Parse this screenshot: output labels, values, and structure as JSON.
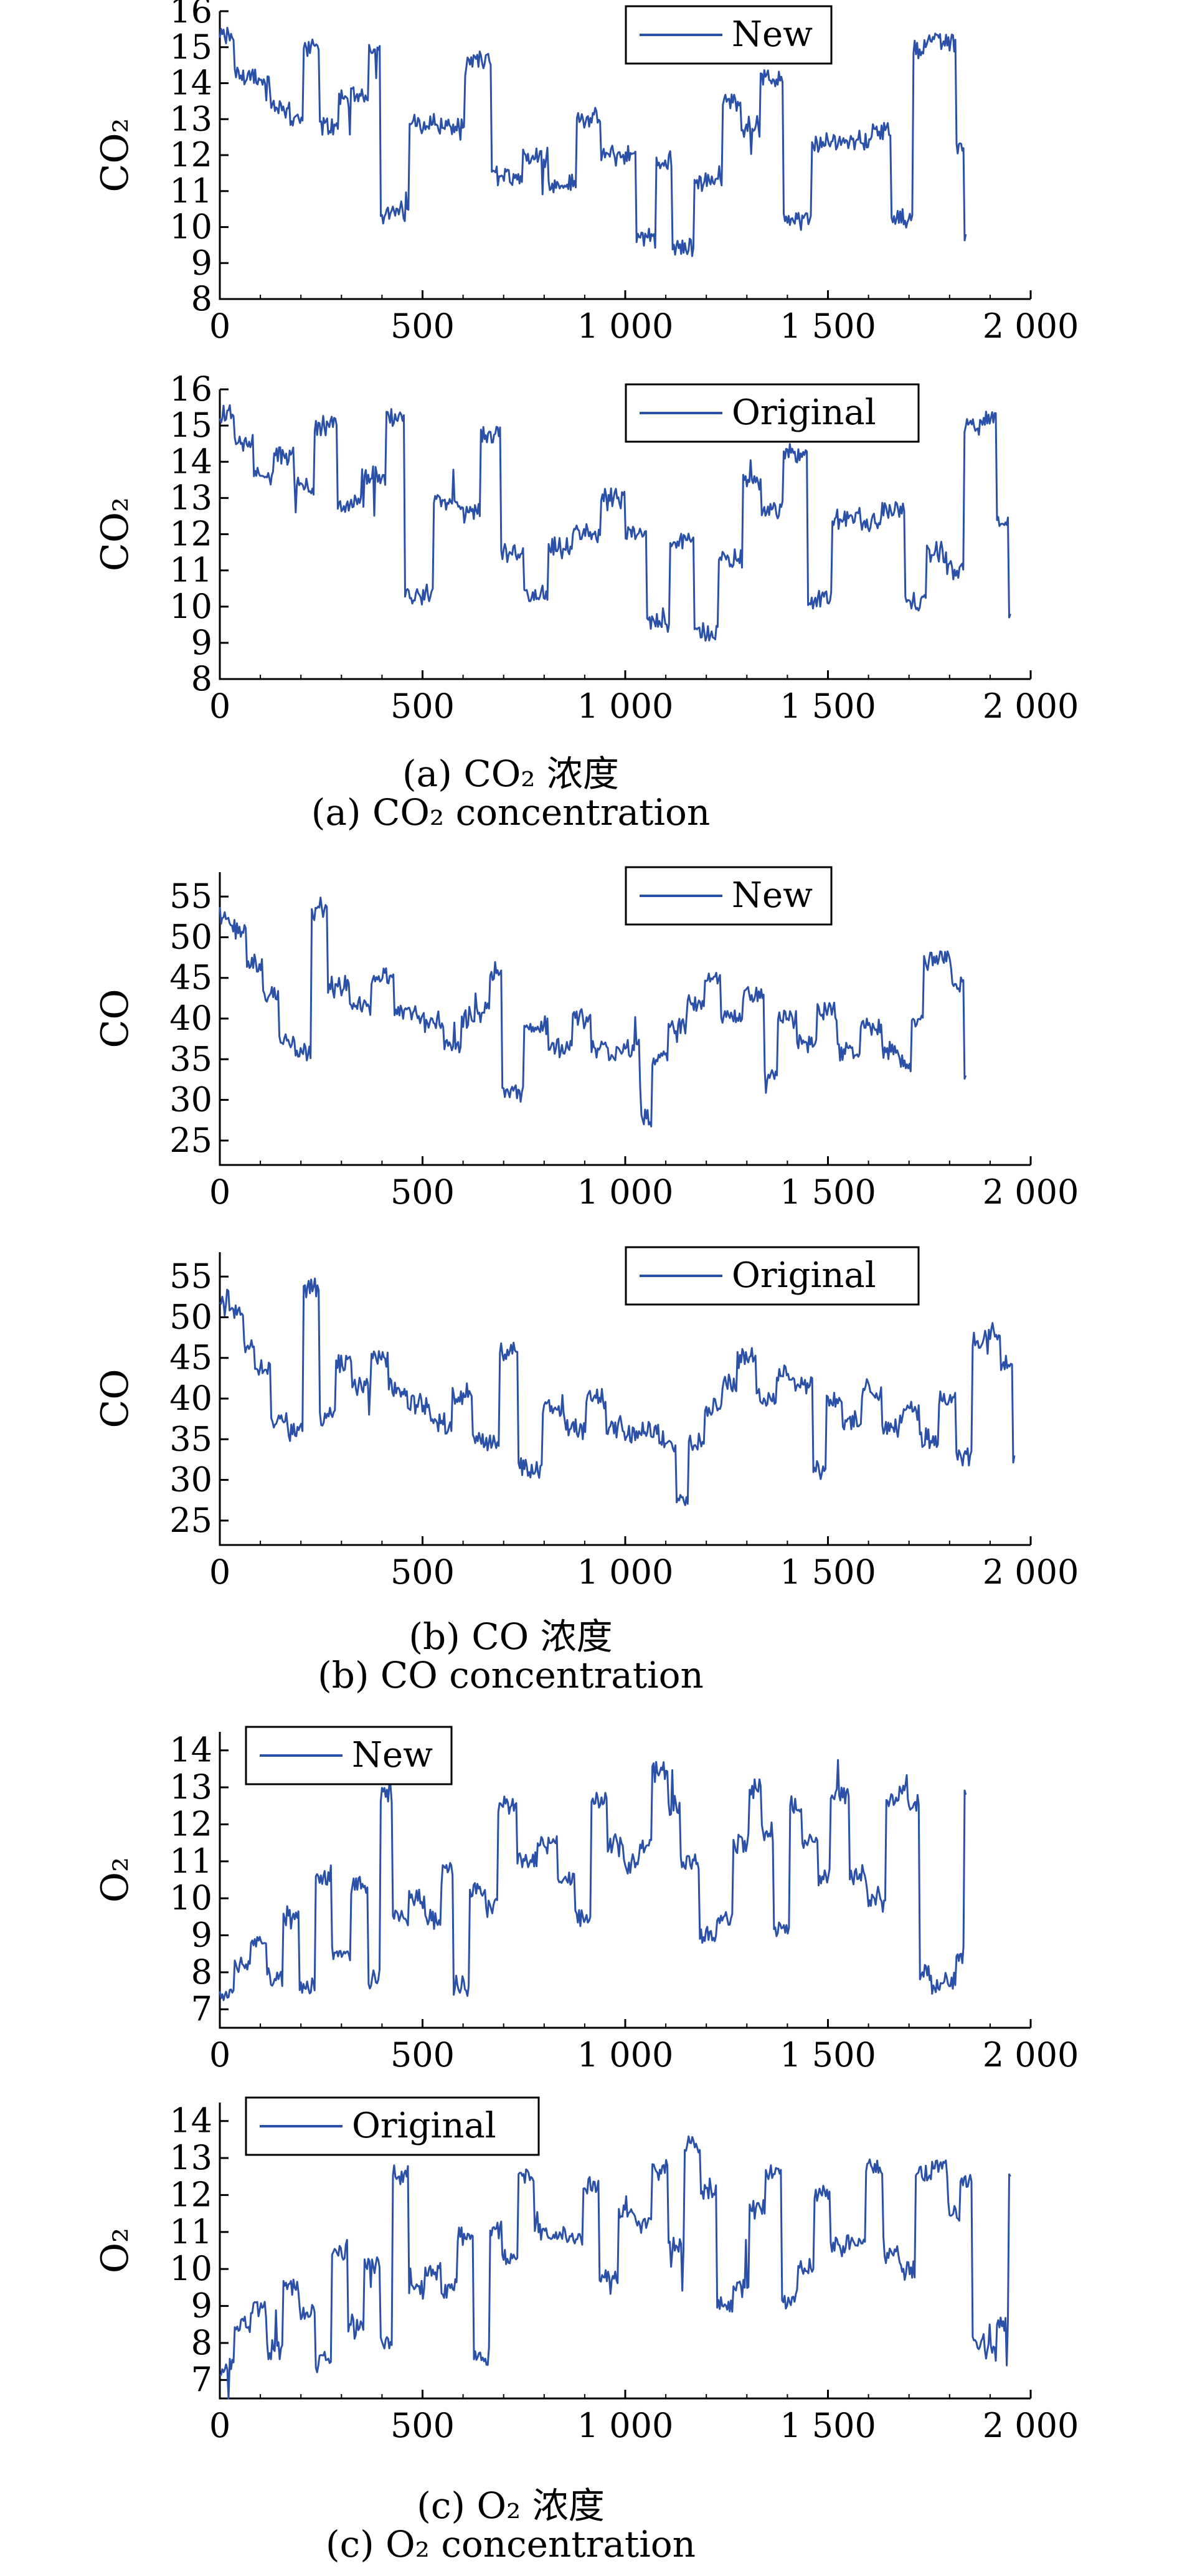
{
  "chart_data": [
    {
      "type": "line",
      "ylabel": "CO₂",
      "xlim": [
        0,
        2000
      ],
      "ylim": [
        8,
        16
      ],
      "xticks": [
        "0",
        "500",
        "1 000",
        "1 500",
        "2 000"
      ],
      "yticks": [
        "8",
        "9",
        "10",
        "11",
        "12",
        "13",
        "14",
        "15",
        "16"
      ],
      "legend": "top-center",
      "color": "#2b50a8",
      "series": [
        {
          "name": "New",
          "x": [
            0,
            40,
            90,
            130,
            180,
            210,
            250,
            300,
            380,
            400,
            480,
            540,
            620,
            680,
            760,
            820,
            890,
            950,
            1040,
            1080,
            1120,
            1180,
            1250,
            1290,
            1340,
            1400,
            1470,
            1520,
            1620,
            1660,
            1720,
            1750,
            1800,
            1820,
            1840
          ],
          "y": [
            15.3,
            14.2,
            14.0,
            13.3,
            13.0,
            15.0,
            12.8,
            13.6,
            15.0,
            10.4,
            12.9,
            12.8,
            14.6,
            11.4,
            12.0,
            11.2,
            13.0,
            12.0,
            9.7,
            11.8,
            9.4,
            11.3,
            13.5,
            12.8,
            14.1,
            10.2,
            12.3,
            12.4,
            12.7,
            10.2,
            15.0,
            15.2,
            15.1,
            12.3,
            9.8
          ]
        },
        {
          "name": "Original",
          "x": [
            0,
            40,
            90,
            140,
            190,
            240,
            300,
            360,
            420,
            460,
            540,
            600,
            650,
            700,
            760,
            820,
            880,
            950,
            1010,
            1060,
            1120,
            1180,
            1240,
            1300,
            1340,
            1400,
            1460,
            1520,
            1590,
            1640,
            1700,
            1750,
            1800,
            1840,
            1890,
            1920,
            1950
          ],
          "y": [
            15.3,
            14.5,
            13.6,
            14.2,
            13.3,
            15.0,
            12.8,
            13.6,
            15.2,
            10.3,
            12.9,
            12.6,
            14.7,
            11.5,
            10.3,
            11.6,
            12.0,
            13.0,
            12.0,
            9.6,
            11.8,
            9.3,
            11.3,
            13.5,
            12.7,
            14.2,
            10.2,
            12.4,
            12.3,
            12.7,
            10.1,
            11.5,
            11.0,
            15.0,
            15.2,
            12.3,
            9.8
          ]
        }
      ]
    },
    {
      "type": "line",
      "ylabel": "CO",
      "xlim": [
        0,
        2000
      ],
      "ylim": [
        22,
        58
      ],
      "xticks": [
        "0",
        "500",
        "1 000",
        "1 500",
        "2 000"
      ],
      "yticks": [
        "25",
        "30",
        "35",
        "40",
        "45",
        "50",
        "55"
      ],
      "legend": "top-center",
      "color": "#2b50a8",
      "series": [
        {
          "name": "New",
          "x": [
            0,
            30,
            70,
            110,
            150,
            190,
            230,
            270,
            330,
            380,
            440,
            500,
            560,
            600,
            640,
            670,
            700,
            760,
            820,
            880,
            920,
            960,
            1000,
            1040,
            1070,
            1110,
            1160,
            1200,
            1240,
            1300,
            1350,
            1380,
            1430,
            1480,
            1530,
            1590,
            1640,
            1680,
            1710,
            1740,
            1780,
            1810,
            1840
          ],
          "y": [
            52.5,
            51.0,
            46.5,
            43.0,
            37.5,
            36.0,
            53.5,
            44.0,
            41.5,
            45.0,
            41.0,
            39.5,
            36.5,
            40.0,
            41.0,
            46.0,
            31.0,
            39.0,
            36.5,
            40.0,
            36.5,
            35.5,
            36.5,
            27.5,
            35.0,
            39.0,
            42.0,
            45.0,
            40.0,
            43.0,
            33.0,
            40.0,
            37.0,
            41.0,
            36.0,
            39.0,
            36.0,
            34.5,
            40.0,
            47.0,
            47.5,
            44.0,
            33.0
          ]
        },
        {
          "name": "Original",
          "x": [
            0,
            30,
            60,
            90,
            130,
            170,
            210,
            250,
            290,
            330,
            380,
            420,
            470,
            530,
            580,
            630,
            700,
            740,
            760,
            800,
            860,
            910,
            960,
            1000,
            1040,
            1090,
            1130,
            1160,
            1200,
            1240,
            1280,
            1330,
            1380,
            1420,
            1470,
            1500,
            1540,
            1590,
            1640,
            1690,
            1730,
            1780,
            1820,
            1860,
            1900,
            1930,
            1960
          ],
          "y": [
            52.0,
            51.0,
            46.5,
            44.0,
            37.5,
            36.0,
            53.5,
            38.0,
            44.0,
            41.5,
            45.0,
            41.0,
            39.5,
            37.0,
            40.5,
            35.0,
            46.0,
            31.5,
            31.0,
            39.0,
            36.5,
            40.0,
            36.5,
            35.5,
            36.0,
            34.5,
            27.5,
            35.0,
            39.0,
            42.0,
            45.0,
            40.0,
            43.0,
            42.0,
            31.5,
            40.0,
            37.0,
            41.0,
            36.5,
            38.5,
            35.0,
            40.0,
            33.0,
            47.0,
            48.0,
            44.0,
            33.0
          ]
        }
      ]
    },
    {
      "type": "line",
      "ylabel": "O₂",
      "xlim": [
        0,
        2000
      ],
      "ylim": [
        6.5,
        14.5
      ],
      "xticks": [
        "0",
        "500",
        "1 000",
        "1 500",
        "2 000"
      ],
      "yticks": [
        "7",
        "8",
        "9",
        "10",
        "11",
        "12",
        "13",
        "14"
      ],
      "legend": "top-left",
      "color": "#2b50a8",
      "series": [
        {
          "name": "New",
          "x": [
            0,
            40,
            80,
            120,
            160,
            200,
            240,
            280,
            330,
            370,
            400,
            430,
            470,
            510,
            550,
            580,
            620,
            660,
            690,
            740,
            790,
            840,
            880,
            920,
            960,
            1000,
            1040,
            1070,
            1110,
            1140,
            1190,
            1230,
            1270,
            1310,
            1340,
            1370,
            1410,
            1440,
            1480,
            1510,
            1560,
            1600,
            1650,
            1680,
            1700,
            1730,
            1760,
            1790,
            1820,
            1840
          ],
          "y": [
            7.4,
            8.2,
            8.8,
            7.8,
            9.5,
            7.6,
            10.6,
            8.5,
            10.3,
            7.8,
            12.8,
            9.5,
            10.0,
            9.5,
            10.8,
            7.6,
            10.2,
            9.8,
            12.5,
            11.0,
            11.5,
            10.5,
            9.5,
            12.6,
            11.4,
            11.0,
            11.5,
            13.4,
            12.5,
            11.0,
            9.0,
            9.5,
            11.5,
            13.0,
            11.8,
            9.2,
            12.5,
            11.5,
            10.5,
            12.8,
            10.6,
            10.0,
            12.6,
            12.9,
            12.5,
            8.0,
            7.6,
            7.8,
            8.4,
            12.8
          ]
        },
        {
          "name": "Original",
          "x": [
            0,
            40,
            80,
            120,
            160,
            200,
            240,
            280,
            320,
            360,
            400,
            430,
            470,
            510,
            550,
            590,
            630,
            670,
            700,
            740,
            780,
            820,
            860,
            900,
            940,
            990,
            1030,
            1070,
            1110,
            1150,
            1190,
            1230,
            1270,
            1310,
            1350,
            1390,
            1430,
            1470,
            1510,
            1550,
            1600,
            1640,
            1680,
            1720,
            1760,
            1800,
            1830,
            1860,
            1890,
            1920,
            1950
          ],
          "y": [
            7.4,
            8.5,
            9.0,
            7.8,
            9.5,
            8.8,
            7.5,
            10.5,
            8.5,
            10.2,
            8.0,
            12.5,
            9.5,
            10.0,
            9.5,
            10.9,
            7.6,
            11.0,
            10.3,
            12.5,
            11.0,
            11.0,
            10.8,
            12.3,
            9.8,
            11.5,
            11.2,
            12.7,
            10.7,
            13.4,
            12.0,
            9.0,
            9.5,
            11.6,
            12.6,
            9.2,
            10.0,
            12.0,
            10.6,
            10.8,
            12.8,
            10.4,
            10.0,
            12.5,
            12.8,
            11.5,
            12.4,
            8.0,
            7.8,
            8.5,
            12.5
          ]
        }
      ]
    }
  ],
  "captions": {
    "a_cn": "(a) CO₂ 浓度",
    "a_en": "(a) CO₂ concentration",
    "b_cn": "(b) CO 浓度",
    "b_en": "(b) CO concentration",
    "c_cn": "(c) O₂ 浓度",
    "c_en": "(c) O₂ concentration"
  }
}
